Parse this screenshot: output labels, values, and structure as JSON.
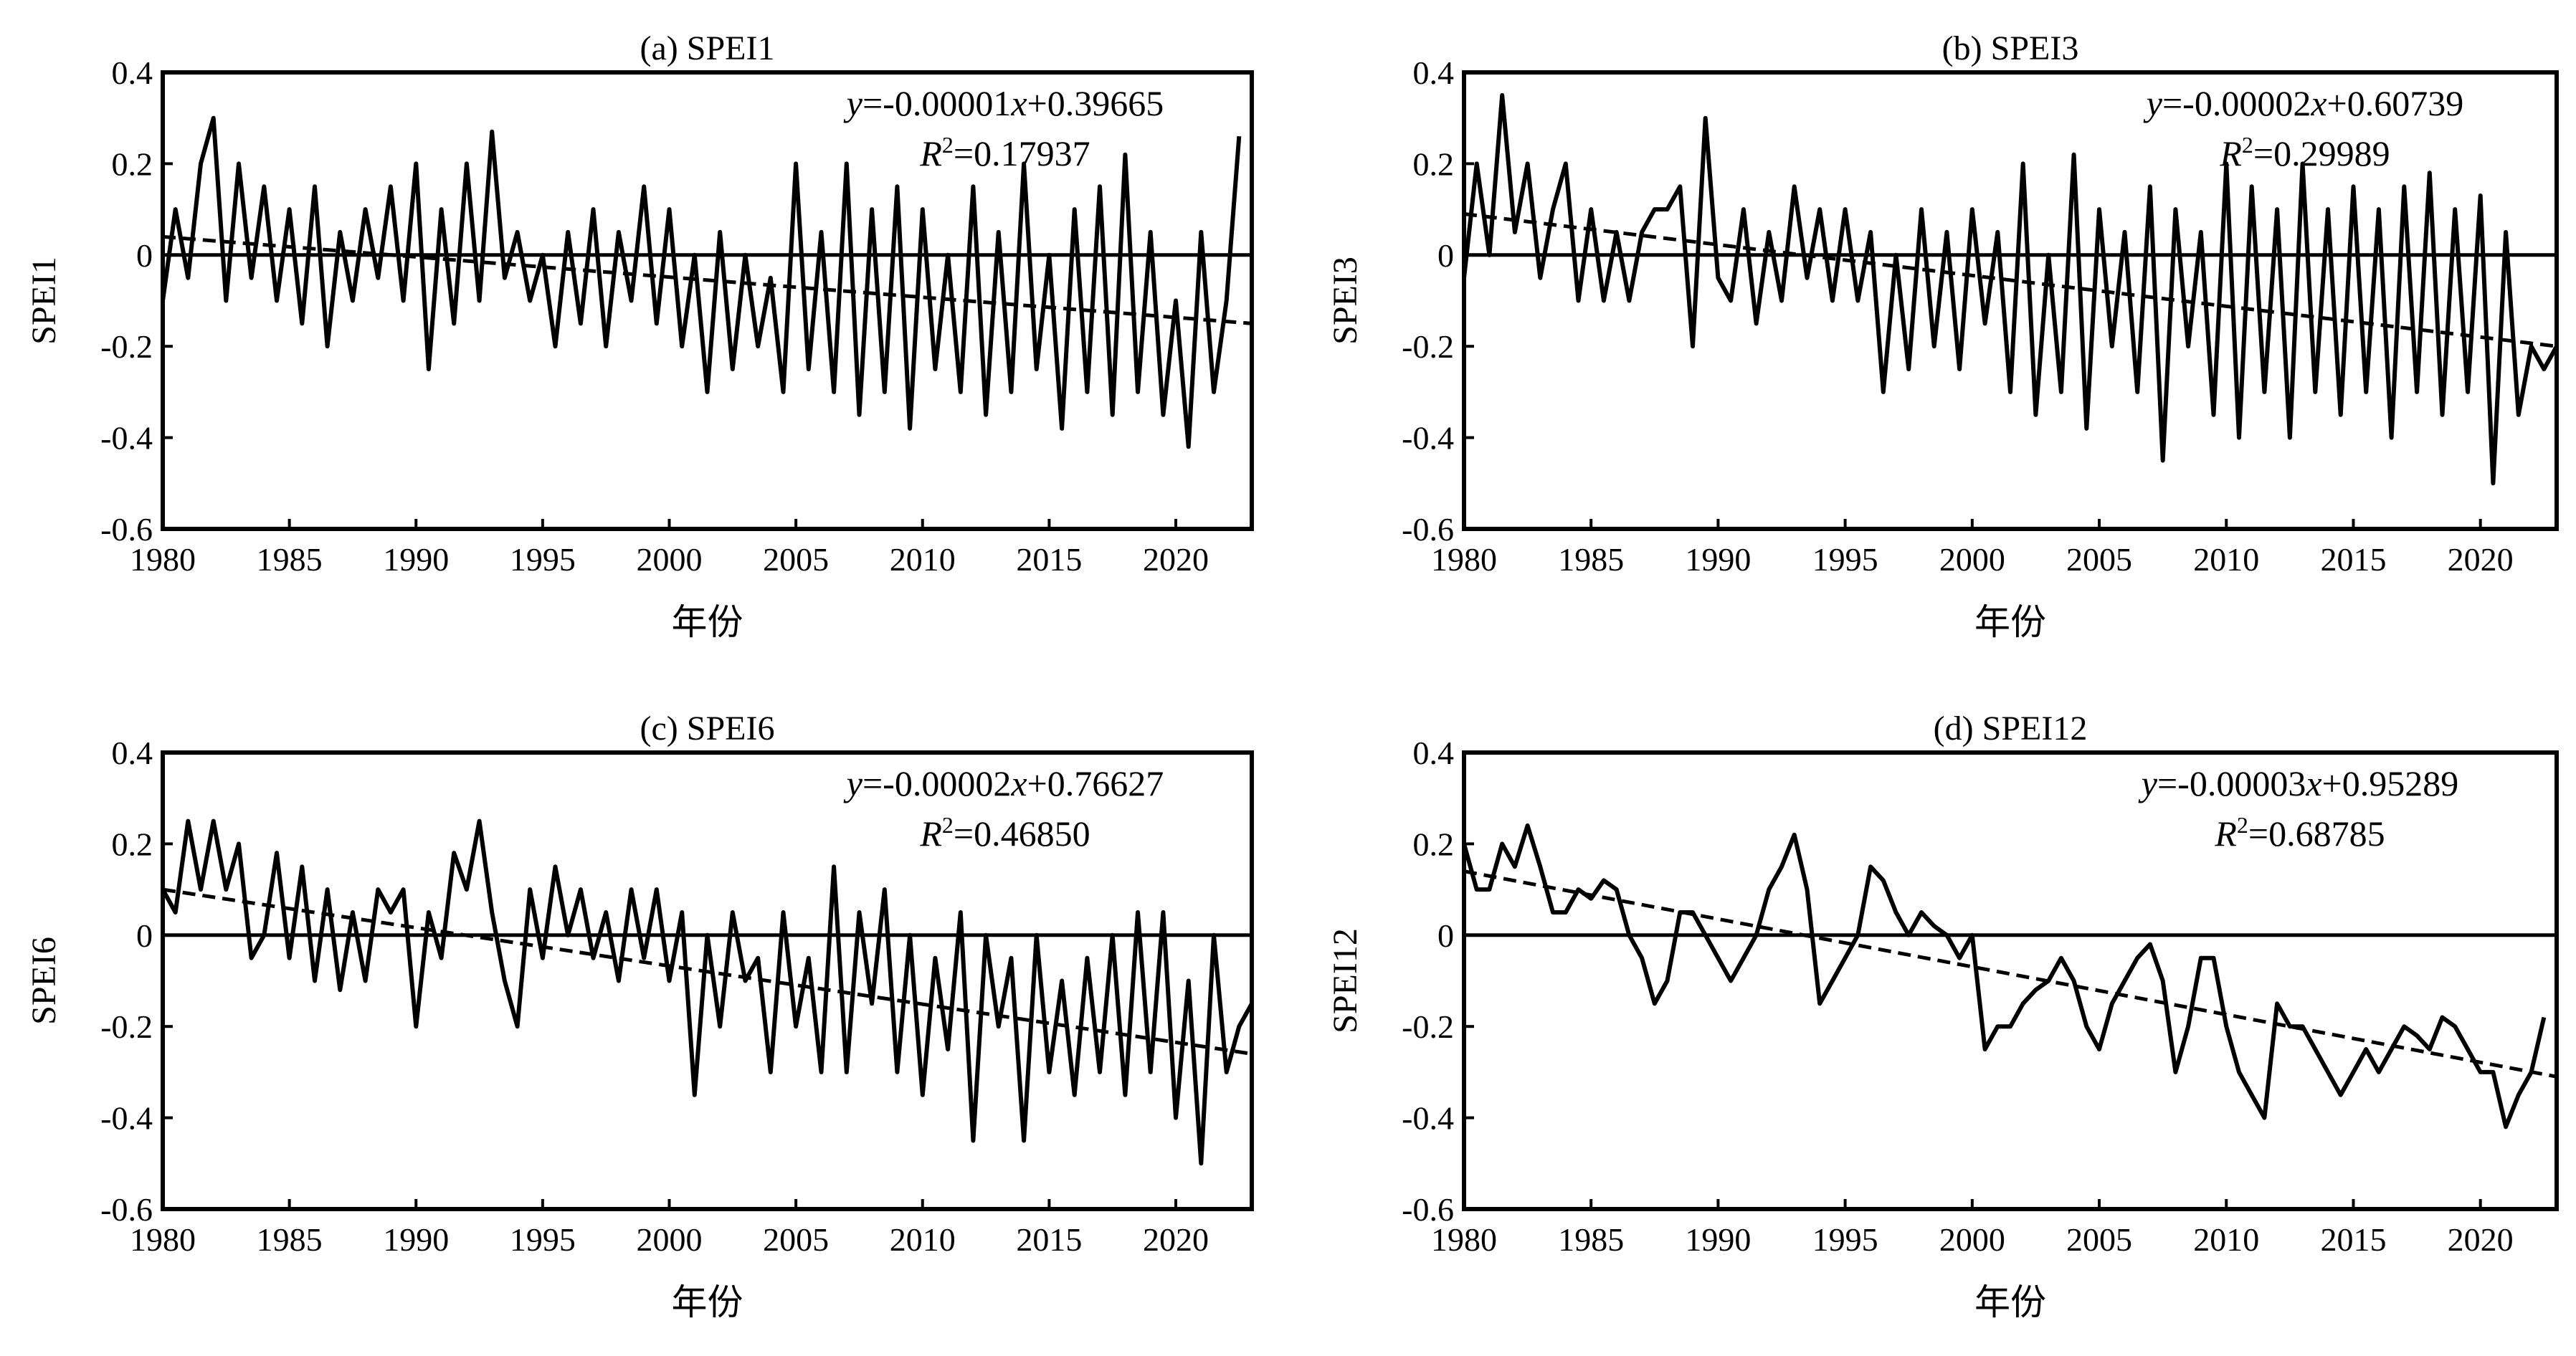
{
  "chart_data": [
    {
      "type": "line",
      "title": "(a) SPEI1",
      "xlabel": "年份",
      "ylabel": "SPEI1",
      "xlim": [
        1980,
        2023
      ],
      "ylim": [
        -0.6,
        0.4
      ],
      "xticks": [
        "1980",
        "1985",
        "1990",
        "1995",
        "2000",
        "2005",
        "2010",
        "2015",
        "2020"
      ],
      "yticks": [
        "0.4",
        "0.2",
        "0",
        "-0.2",
        "-0.4",
        "-0.6"
      ],
      "equation": {
        "y": "y",
        "mid": "=-0.00001",
        "x": "x",
        "tail": "+0.39665"
      },
      "r2": {
        "r": "R",
        "sup": "2",
        "tail": "=0.17937"
      },
      "x_start": 1980,
      "x_step": 0.5,
      "values": [
        -0.1,
        0.1,
        -0.05,
        0.2,
        0.3,
        -0.1,
        0.2,
        -0.05,
        0.15,
        -0.1,
        0.1,
        -0.15,
        0.15,
        -0.2,
        0.05,
        -0.1,
        0.1,
        -0.05,
        0.15,
        -0.1,
        0.2,
        -0.25,
        0.1,
        -0.15,
        0.2,
        -0.1,
        0.27,
        -0.05,
        0.05,
        -0.1,
        0.0,
        -0.2,
        0.05,
        -0.15,
        0.1,
        -0.2,
        0.05,
        -0.1,
        0.15,
        -0.15,
        0.1,
        -0.2,
        0.0,
        -0.3,
        0.05,
        -0.25,
        0.0,
        -0.2,
        -0.05,
        -0.3,
        0.2,
        -0.25,
        0.05,
        -0.3,
        0.2,
        -0.35,
        0.1,
        -0.3,
        0.15,
        -0.38,
        0.1,
        -0.25,
        0.0,
        -0.3,
        0.15,
        -0.35,
        0.05,
        -0.3,
        0.2,
        -0.25,
        0.0,
        -0.38,
        0.1,
        -0.3,
        0.15,
        -0.35,
        0.22,
        -0.3,
        0.05,
        -0.35,
        -0.1,
        -0.42,
        0.05,
        -0.3,
        -0.1,
        0.26
      ],
      "trend": [
        [
          1980,
          0.04
        ],
        [
          2023,
          -0.15
        ]
      ]
    },
    {
      "type": "line",
      "title": "(b) SPEI3",
      "xlabel": "年份",
      "ylabel": "SPEI3",
      "xlim": [
        1980,
        2023
      ],
      "ylim": [
        -0.6,
        0.4
      ],
      "xticks": [
        "1980",
        "1985",
        "1990",
        "1995",
        "2000",
        "2005",
        "2010",
        "2015",
        "2020"
      ],
      "yticks": [
        "0.4",
        "0.2",
        "0",
        "-0.2",
        "-0.4",
        "-0.6"
      ],
      "equation": {
        "y": "y",
        "mid": "=-0.00002",
        "x": "x",
        "tail": "+0.60739"
      },
      "r2": {
        "r": "R",
        "sup": "2",
        "tail": "=0.29989"
      },
      "x_start": 1980,
      "x_step": 0.5,
      "values": [
        -0.05,
        0.2,
        0.0,
        0.35,
        0.05,
        0.2,
        -0.05,
        0.1,
        0.2,
        -0.1,
        0.1,
        -0.1,
        0.05,
        -0.1,
        0.05,
        0.1,
        0.1,
        0.15,
        -0.2,
        0.3,
        -0.05,
        -0.1,
        0.1,
        -0.15,
        0.05,
        -0.1,
        0.15,
        -0.05,
        0.1,
        -0.1,
        0.1,
        -0.1,
        0.05,
        -0.3,
        0.0,
        -0.25,
        0.1,
        -0.2,
        0.05,
        -0.25,
        0.1,
        -0.15,
        0.05,
        -0.3,
        0.2,
        -0.35,
        0.0,
        -0.3,
        0.22,
        -0.38,
        0.1,
        -0.2,
        0.05,
        -0.3,
        0.15,
        -0.45,
        0.1,
        -0.2,
        0.05,
        -0.35,
        0.2,
        -0.4,
        0.15,
        -0.3,
        0.1,
        -0.4,
        0.2,
        -0.3,
        0.1,
        -0.35,
        0.15,
        -0.3,
        0.1,
        -0.4,
        0.15,
        -0.3,
        0.18,
        -0.35,
        0.1,
        -0.3,
        0.13,
        -0.5,
        0.05,
        -0.35,
        -0.2,
        -0.25,
        -0.2
      ],
      "trend": [
        [
          1980,
          0.09
        ],
        [
          2023,
          -0.2
        ]
      ]
    },
    {
      "type": "line",
      "title": "(c) SPEI6",
      "xlabel": "年份",
      "ylabel": "SPEI6",
      "xlim": [
        1980,
        2023
      ],
      "ylim": [
        -0.6,
        0.4
      ],
      "xticks": [
        "1980",
        "1985",
        "1990",
        "1995",
        "2000",
        "2005",
        "2010",
        "2015",
        "2020"
      ],
      "yticks": [
        "0.4",
        "0.2",
        "0",
        "-0.2",
        "-0.4",
        "-0.6"
      ],
      "equation": {
        "y": "y",
        "mid": "=-0.00002",
        "x": "x",
        "tail": "+0.76627"
      },
      "r2": {
        "r": "R",
        "sup": "2",
        "tail": "=0.46850"
      },
      "x_start": 1980,
      "x_step": 0.5,
      "values": [
        0.1,
        0.05,
        0.25,
        0.1,
        0.25,
        0.1,
        0.2,
        -0.05,
        0.0,
        0.18,
        -0.05,
        0.15,
        -0.1,
        0.1,
        -0.12,
        0.05,
        -0.1,
        0.1,
        0.05,
        0.1,
        -0.2,
        0.05,
        -0.05,
        0.18,
        0.1,
        0.25,
        0.05,
        -0.1,
        -0.2,
        0.1,
        -0.05,
        0.15,
        0.0,
        0.1,
        -0.05,
        0.05,
        -0.1,
        0.1,
        -0.05,
        0.1,
        -0.1,
        0.05,
        -0.35,
        0.0,
        -0.2,
        0.05,
        -0.1,
        -0.05,
        -0.3,
        0.05,
        -0.2,
        -0.05,
        -0.3,
        0.15,
        -0.3,
        0.05,
        -0.15,
        0.1,
        -0.3,
        0.0,
        -0.35,
        -0.05,
        -0.25,
        0.05,
        -0.45,
        0.0,
        -0.2,
        -0.05,
        -0.45,
        0.0,
        -0.3,
        -0.1,
        -0.35,
        -0.05,
        -0.3,
        0.0,
        -0.35,
        0.05,
        -0.3,
        0.05,
        -0.4,
        -0.1,
        -0.5,
        0.0,
        -0.3,
        -0.2,
        -0.15
      ],
      "trend": [
        [
          1980,
          0.1
        ],
        [
          2023,
          -0.26
        ]
      ]
    },
    {
      "type": "line",
      "title": "(d) SPEI12",
      "xlabel": "年份",
      "ylabel": "SPEI12",
      "xlim": [
        1980,
        2023
      ],
      "ylim": [
        -0.6,
        0.4
      ],
      "xticks": [
        "1980",
        "1985",
        "1990",
        "1995",
        "2000",
        "2005",
        "2010",
        "2015",
        "2020"
      ],
      "yticks": [
        "0.4",
        "0.2",
        "0",
        "-0.2",
        "-0.4",
        "-0.6"
      ],
      "equation": {
        "y": "y",
        "mid": "=-0.00003",
        "x": "x",
        "tail": "+0.95289"
      },
      "r2": {
        "r": "R",
        "sup": "2",
        "tail": "=0.68785"
      },
      "x_start": 1980,
      "x_step": 0.5,
      "values": [
        0.2,
        0.1,
        0.1,
        0.2,
        0.15,
        0.24,
        0.15,
        0.05,
        0.05,
        0.1,
        0.08,
        0.12,
        0.1,
        0.0,
        -0.05,
        -0.15,
        -0.1,
        0.05,
        0.05,
        0.0,
        -0.05,
        -0.1,
        -0.05,
        0.0,
        0.1,
        0.15,
        0.22,
        0.1,
        -0.15,
        -0.1,
        -0.05,
        0.0,
        0.15,
        0.12,
        0.05,
        0.0,
        0.05,
        0.02,
        0.0,
        -0.05,
        0.0,
        -0.25,
        -0.2,
        -0.2,
        -0.15,
        -0.12,
        -0.1,
        -0.05,
        -0.1,
        -0.2,
        -0.25,
        -0.15,
        -0.1,
        -0.05,
        -0.02,
        -0.1,
        -0.3,
        -0.2,
        -0.05,
        -0.05,
        -0.2,
        -0.3,
        -0.35,
        -0.4,
        -0.15,
        -0.2,
        -0.2,
        -0.25,
        -0.3,
        -0.35,
        -0.3,
        -0.25,
        -0.3,
        -0.25,
        -0.2,
        -0.22,
        -0.25,
        -0.18,
        -0.2,
        -0.25,
        -0.3,
        -0.3,
        -0.42,
        -0.35,
        -0.3,
        -0.18
      ],
      "trend": [
        [
          1980,
          0.14
        ],
        [
          2023,
          -0.31
        ]
      ]
    }
  ]
}
